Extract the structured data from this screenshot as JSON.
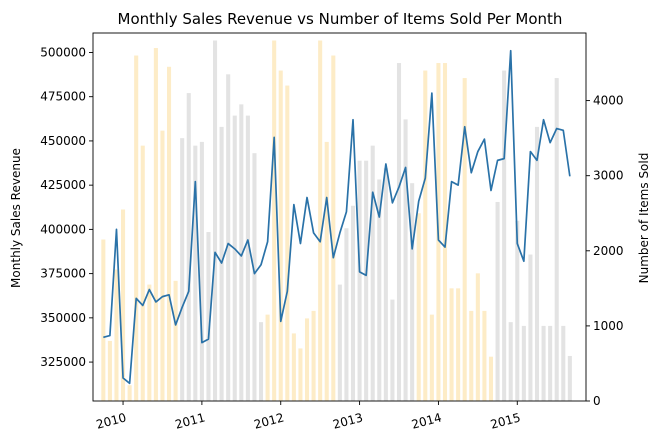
{
  "chart_data": {
    "type": "bar+line",
    "title": "Monthly Sales Revenue vs Number of Items Sold Per Month",
    "ylabel_left": "Monthly Sales Revenue",
    "ylabel_right": "Number of Items Sold",
    "xlabel": "",
    "x_dates": [
      "2009-10",
      "2009-11",
      "2009-12",
      "2010-01",
      "2010-02",
      "2010-03",
      "2010-04",
      "2010-05",
      "2010-06",
      "2010-07",
      "2010-08",
      "2010-09",
      "2010-10",
      "2010-11",
      "2010-12",
      "2011-01",
      "2011-02",
      "2011-03",
      "2011-04",
      "2011-05",
      "2011-06",
      "2011-07",
      "2011-08",
      "2011-09",
      "2011-10",
      "2011-11",
      "2011-12",
      "2012-01",
      "2012-02",
      "2012-03",
      "2012-04",
      "2012-05",
      "2012-06",
      "2012-07",
      "2012-08",
      "2012-09",
      "2012-10",
      "2012-11",
      "2012-12",
      "2013-01",
      "2013-02",
      "2013-03",
      "2013-04",
      "2013-05",
      "2013-06",
      "2013-07",
      "2013-08",
      "2013-09",
      "2013-10",
      "2013-11",
      "2013-12",
      "2014-01",
      "2014-02",
      "2014-03",
      "2014-04",
      "2014-05",
      "2014-06",
      "2014-07",
      "2014-08",
      "2014-09",
      "2014-10",
      "2014-11",
      "2014-12",
      "2015-01",
      "2015-02",
      "2015-03",
      "2015-04",
      "2015-05",
      "2015-06",
      "2015-07",
      "2015-08",
      "2015-09"
    ],
    "x_tick_labels": [
      "2010",
      "2011",
      "2012",
      "2013",
      "2014",
      "2015"
    ],
    "x_tick_dates": [
      "2010-01",
      "2011-01",
      "2012-01",
      "2013-01",
      "2014-01",
      "2015-01"
    ],
    "y_left_ticks": [
      325000,
      350000,
      375000,
      400000,
      425000,
      450000,
      475000,
      500000
    ],
    "y_left_lim": [
      303000,
      511000
    ],
    "y_right_ticks": [
      0,
      1000,
      2000,
      3000,
      4000
    ],
    "y_right_lim": [
      0,
      4900
    ],
    "series": [
      {
        "name": "Monthly Sales Revenue",
        "axis": "left",
        "style": "line",
        "color": "#2a72a8",
        "values": [
          339000,
          340000,
          400000,
          316000,
          313000,
          361000,
          357000,
          366000,
          359000,
          362000,
          363000,
          346000,
          356000,
          365000,
          427000,
          336000,
          338000,
          387000,
          381000,
          392000,
          389000,
          385000,
          394000,
          375000,
          380000,
          393000,
          452000,
          348000,
          365000,
          414000,
          392000,
          418000,
          398000,
          393000,
          418000,
          384000,
          398000,
          410000,
          462000,
          376000,
          374000,
          421000,
          407000,
          437000,
          415000,
          424000,
          435000,
          389000,
          416000,
          429000,
          477000,
          394000,
          390000,
          427000,
          425000,
          458000,
          432000,
          444000,
          451000,
          422000,
          439000,
          440000,
          501000,
          392000,
          382000,
          444000,
          439000,
          462000,
          449000,
          457000,
          456000,
          430000
        ]
      },
      {
        "name": "Number of Items Sold",
        "axis": "right",
        "style": "bar",
        "values": [
          2150,
          800,
          1750,
          2550,
          210,
          4600,
          3400,
          1550,
          4700,
          3600,
          4450,
          1600,
          3500,
          4100,
          3400,
          3450,
          2250,
          4800,
          3650,
          4350,
          3800,
          3950,
          3800,
          3300,
          1050,
          1150,
          4800,
          4400,
          4200,
          900,
          700,
          1100,
          1200,
          4800,
          3450,
          4600,
          1550,
          2300,
          2600,
          3200,
          3200,
          3400,
          2950,
          3100,
          1350,
          4500,
          3750,
          2900,
          2500,
          4400,
          1150,
          4500,
          4500,
          1500,
          1500,
          4300,
          1200,
          1700,
          1200,
          590,
          2650,
          4400,
          1050,
          2400,
          1000,
          1950,
          3650,
          1000,
          1000,
          4300,
          1000,
          600
        ]
      }
    ],
    "bar_color_groups": [
      {
        "from": "2009-10",
        "to": "2010-09",
        "color": "#fdecc7"
      },
      {
        "from": "2010-10",
        "to": "2011-10",
        "color": "#e3e3e3"
      },
      {
        "from": "2011-11",
        "to": "2012-09",
        "color": "#fdecc7"
      },
      {
        "from": "2012-10",
        "to": "2013-09",
        "color": "#e3e3e3"
      },
      {
        "from": "2013-10",
        "to": "2014-09",
        "color": "#fdecc7"
      },
      {
        "from": "2014-10",
        "to": "2015-09",
        "color": "#e3e3e3"
      }
    ],
    "x_lim": [
      "2009-08-14",
      "2015-11-15"
    ],
    "grid": false,
    "legend": "none"
  }
}
